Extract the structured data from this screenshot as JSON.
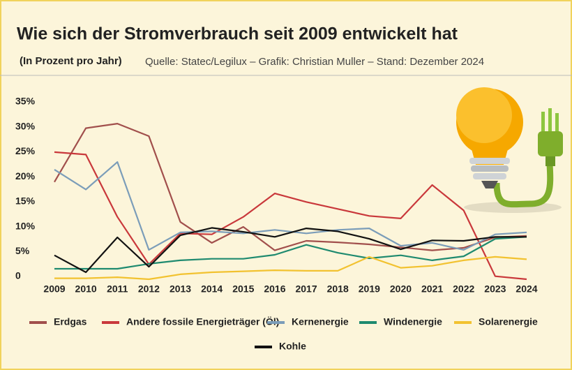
{
  "chart_data": {
    "type": "line",
    "title": "Wie sich der Stromverbrauch seit 2009 entwickelt hat",
    "subtitle": "(In Prozent pro Jahr)",
    "source": "Quelle: Statec/Legilux – Grafik: Christian Muller – Stand: Dezember 2024",
    "categories": [
      "2009",
      "2010",
      "2011",
      "2012",
      "2013",
      "2014",
      "2015",
      "2016",
      "2017",
      "2018",
      "2019",
      "2020",
      "2021",
      "2022",
      "2023",
      "2024"
    ],
    "ylim": [
      0,
      35
    ],
    "yticks": [
      0,
      {
        "value": 5,
        "label": "5%"
      },
      {
        "value": 10,
        "label": "10%"
      },
      {
        "value": 15,
        "label": "15%"
      },
      {
        "value": 20,
        "label": "20%"
      },
      {
        "value": 25,
        "label": "25%"
      },
      {
        "value": 30,
        "label": "30%"
      },
      {
        "value": 35,
        "label": "35%"
      }
    ],
    "grid": false,
    "series": [
      {
        "name": "Erdgas",
        "color": "#a14f4c",
        "values": [
          19.5,
          30.3,
          31.2,
          28.7,
          11.5,
          7.3,
          10.5,
          5.8,
          7.7,
          7.4,
          7.0,
          6.4,
          5.8,
          6.3,
          8.4,
          8.7
        ]
      },
      {
        "name": "Andere fossile Energieträger (Öl)",
        "color": "#c9383b",
        "values": [
          25.5,
          25.0,
          12.5,
          3.0,
          9.2,
          9.0,
          12.5,
          17.2,
          15.5,
          14.1,
          12.7,
          12.2,
          18.9,
          13.8,
          0.6,
          0
        ]
      },
      {
        "name": "Kernenergie",
        "color": "#7b9db9",
        "values": [
          22.0,
          18.0,
          23.5,
          5.9,
          9.4,
          9.6,
          9.2,
          9.9,
          9.2,
          9.9,
          10.2,
          6.7,
          7.3,
          5.9,
          9.0,
          9.4
        ]
      },
      {
        "name": "Windenergie",
        "color": "#1e8a6f",
        "values": [
          2.1,
          2.1,
          2.1,
          3.1,
          3.8,
          4.1,
          4.1,
          4.9,
          6.9,
          5.3,
          4.2,
          4.8,
          3.8,
          4.6,
          8.1,
          8.5
        ]
      },
      {
        "name": "Solarenergie",
        "color": "#f2c230",
        "values": [
          0.2,
          0.2,
          0.4,
          0.0,
          1.0,
          1.4,
          1.6,
          1.8,
          1.7,
          1.7,
          4.5,
          2.3,
          2.7,
          3.8,
          4.5,
          4.0
        ]
      },
      {
        "name": "Kohle",
        "color": "#111111",
        "values": [
          4.8,
          1.4,
          8.4,
          2.5,
          8.8,
          10.3,
          9.5,
          8.5,
          10.2,
          9.6,
          8.1,
          6.0,
          7.8,
          7.7,
          8.5,
          8.5
        ]
      }
    ]
  }
}
